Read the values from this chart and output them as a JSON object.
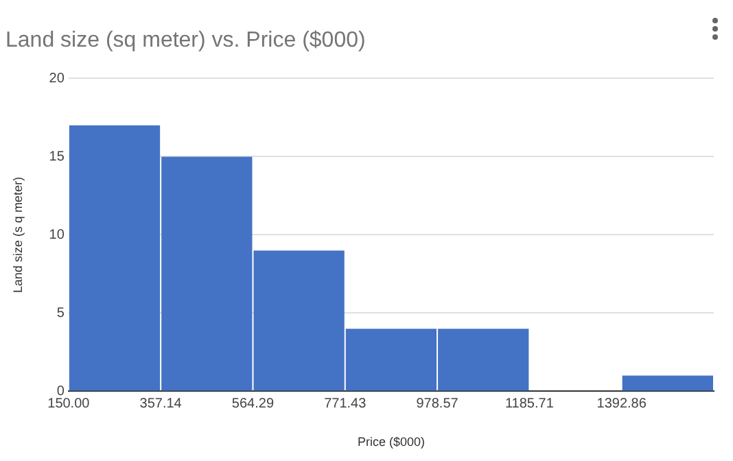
{
  "chart_data": {
    "type": "histogram",
    "title": "Land size (sq meter) vs. Price ($000)",
    "xlabel": "Price ($000)",
    "ylabel": "Land size (s q meter)",
    "bins": [
      150,
      357.14,
      564.29,
      771.43,
      978.57,
      1185.71,
      1392.86,
      1600
    ],
    "values": [
      17,
      15,
      9,
      4,
      4,
      0,
      1
    ],
    "color": "#4472c4",
    "xlim": [
      150,
      1600
    ],
    "xticks": [
      {
        "value": 150,
        "label": "150.00"
      },
      357.14,
      564.29,
      771.43,
      978.57,
      1185.71,
      1392.86
    ],
    "ylim": [
      0,
      20
    ],
    "yticks": [
      0,
      5,
      10,
      15,
      20
    ],
    "grid": "y",
    "legend": false
  }
}
